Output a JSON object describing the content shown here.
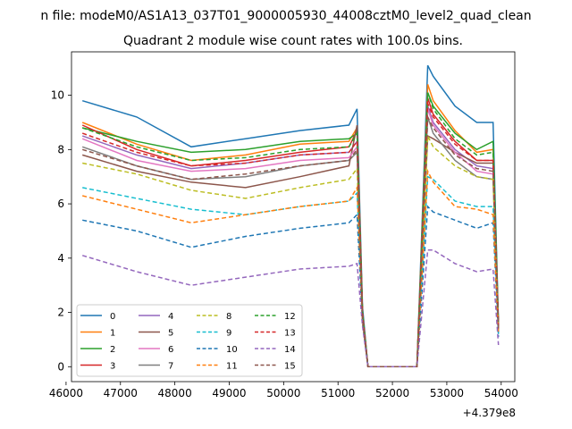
{
  "suptitle": "n file: modeM0/AS1A13_037T01_9000005930_44008cztM0_level2_quad_clean",
  "chart_data": {
    "type": "line",
    "title": "Quadrant 2 module wise count rates with 100.0s bins.",
    "xlabel": "",
    "ylabel": "",
    "x_offset_label": "+4.379e8",
    "xlim": [
      46100,
      54250
    ],
    "ylim": [
      -0.55,
      11.6
    ],
    "x_ticks": [
      46000,
      47000,
      48000,
      49000,
      50000,
      51000,
      52000,
      53000,
      54000
    ],
    "y_ticks": [
      0,
      2,
      4,
      6,
      8,
      10
    ],
    "x_tick_labels": [
      "46000",
      "47000",
      "48000",
      "49000",
      "50000",
      "51000",
      "52000",
      "53000",
      "54000"
    ],
    "y_tick_labels": [
      "0",
      "2",
      "4",
      "6",
      "8",
      "10"
    ],
    "grid": false,
    "legend_placement": "lower-left",
    "legend_columns": 4,
    "x": [
      46300,
      47300,
      48300,
      49300,
      50300,
      51200,
      51350,
      51450,
      51550,
      52450,
      52650,
      52750,
      53150,
      53550,
      53850,
      53950
    ],
    "series": [
      {
        "name": "0",
        "color": "#1f77b4",
        "dash": "solid",
        "values": [
          9.8,
          9.2,
          8.1,
          8.4,
          8.7,
          8.9,
          9.5,
          2.2,
          0.0,
          0.0,
          11.1,
          10.7,
          9.6,
          9.0,
          9.0,
          1.6
        ]
      },
      {
        "name": "1",
        "color": "#ff7f0e",
        "dash": "solid",
        "values": [
          9.0,
          8.2,
          7.6,
          7.8,
          8.2,
          8.3,
          8.8,
          2.0,
          0.0,
          0.0,
          10.4,
          9.8,
          8.7,
          7.9,
          8.0,
          1.5
        ]
      },
      {
        "name": "2",
        "color": "#2ca02c",
        "dash": "solid",
        "values": [
          8.8,
          8.3,
          7.9,
          8.0,
          8.3,
          8.4,
          8.6,
          2.0,
          0.0,
          0.0,
          10.1,
          9.6,
          8.6,
          8.0,
          8.3,
          1.6
        ]
      },
      {
        "name": "3",
        "color": "#d62728",
        "dash": "solid",
        "values": [
          8.9,
          8.0,
          7.4,
          7.6,
          7.9,
          8.1,
          8.7,
          2.0,
          0.0,
          0.0,
          9.9,
          9.3,
          8.3,
          7.6,
          7.6,
          1.5
        ]
      },
      {
        "name": "4",
        "color": "#9467bd",
        "dash": "solid",
        "values": [
          8.5,
          7.8,
          7.3,
          7.5,
          7.8,
          7.9,
          8.3,
          1.9,
          0.0,
          0.0,
          9.6,
          9.0,
          8.0,
          7.4,
          7.3,
          1.4
        ]
      },
      {
        "name": "5",
        "color": "#8c564b",
        "dash": "solid",
        "values": [
          7.8,
          7.2,
          6.8,
          6.6,
          7.0,
          7.4,
          8.9,
          1.9,
          0.0,
          0.0,
          8.5,
          8.4,
          7.9,
          7.5,
          7.5,
          1.4
        ]
      },
      {
        "name": "6",
        "color": "#e377c2",
        "dash": "solid",
        "values": [
          8.4,
          7.6,
          7.2,
          7.3,
          7.6,
          7.7,
          8.1,
          1.9,
          0.0,
          0.0,
          9.5,
          8.9,
          7.9,
          7.2,
          7.1,
          1.4
        ]
      },
      {
        "name": "7",
        "color": "#7f7f7f",
        "dash": "solid",
        "values": [
          8.1,
          7.4,
          6.9,
          7.0,
          7.4,
          7.6,
          7.9,
          1.8,
          0.0,
          0.0,
          9.2,
          8.6,
          7.6,
          7.0,
          6.9,
          1.3
        ]
      },
      {
        "name": "8",
        "color": "#bcbd22",
        "dash": "dashed",
        "values": [
          7.5,
          7.1,
          6.5,
          6.2,
          6.6,
          6.9,
          7.3,
          1.8,
          0.0,
          0.0,
          8.5,
          8.1,
          7.4,
          7.0,
          6.9,
          1.3
        ]
      },
      {
        "name": "9",
        "color": "#17becf",
        "dash": "dashed",
        "values": [
          6.6,
          6.2,
          5.8,
          5.6,
          5.9,
          6.1,
          6.4,
          1.7,
          0.0,
          0.0,
          7.0,
          6.9,
          6.1,
          5.9,
          5.9,
          1.2
        ]
      },
      {
        "name": "10",
        "color": "#1f77b4",
        "dash": "dashed",
        "values": [
          5.4,
          5.0,
          4.4,
          4.8,
          5.1,
          5.3,
          5.6,
          1.6,
          0.0,
          0.0,
          5.9,
          5.7,
          5.4,
          5.1,
          5.3,
          1.1
        ]
      },
      {
        "name": "11",
        "color": "#ff7f0e",
        "dash": "dashed",
        "values": [
          6.3,
          5.8,
          5.3,
          5.6,
          5.9,
          6.1,
          6.6,
          1.7,
          0.0,
          0.0,
          7.2,
          6.8,
          5.9,
          5.8,
          5.6,
          1.2
        ]
      },
      {
        "name": "12",
        "color": "#2ca02c",
        "dash": "dashed",
        "values": [
          8.8,
          8.1,
          7.6,
          7.7,
          8.0,
          8.1,
          8.6,
          2.0,
          0.0,
          0.0,
          10.1,
          9.5,
          8.4,
          7.8,
          7.9,
          1.5
        ]
      },
      {
        "name": "13",
        "color": "#d62728",
        "dash": "dashed",
        "values": [
          8.6,
          7.9,
          7.4,
          7.5,
          7.8,
          7.9,
          8.3,
          1.9,
          0.0,
          0.0,
          9.7,
          9.2,
          8.2,
          7.6,
          7.6,
          1.5
        ]
      },
      {
        "name": "14",
        "color": "#9467bd",
        "dash": "dashed",
        "values": [
          4.1,
          3.5,
          3.0,
          3.3,
          3.6,
          3.7,
          3.8,
          1.5,
          0.0,
          0.0,
          4.3,
          4.3,
          3.8,
          3.5,
          3.6,
          0.8
        ]
      },
      {
        "name": "15",
        "color": "#8c564b",
        "dash": "dashed",
        "values": [
          8.0,
          7.4,
          6.9,
          7.1,
          7.4,
          7.6,
          8.0,
          1.8,
          0.0,
          0.0,
          9.2,
          8.8,
          7.8,
          7.3,
          7.2,
          1.4
        ]
      }
    ]
  }
}
